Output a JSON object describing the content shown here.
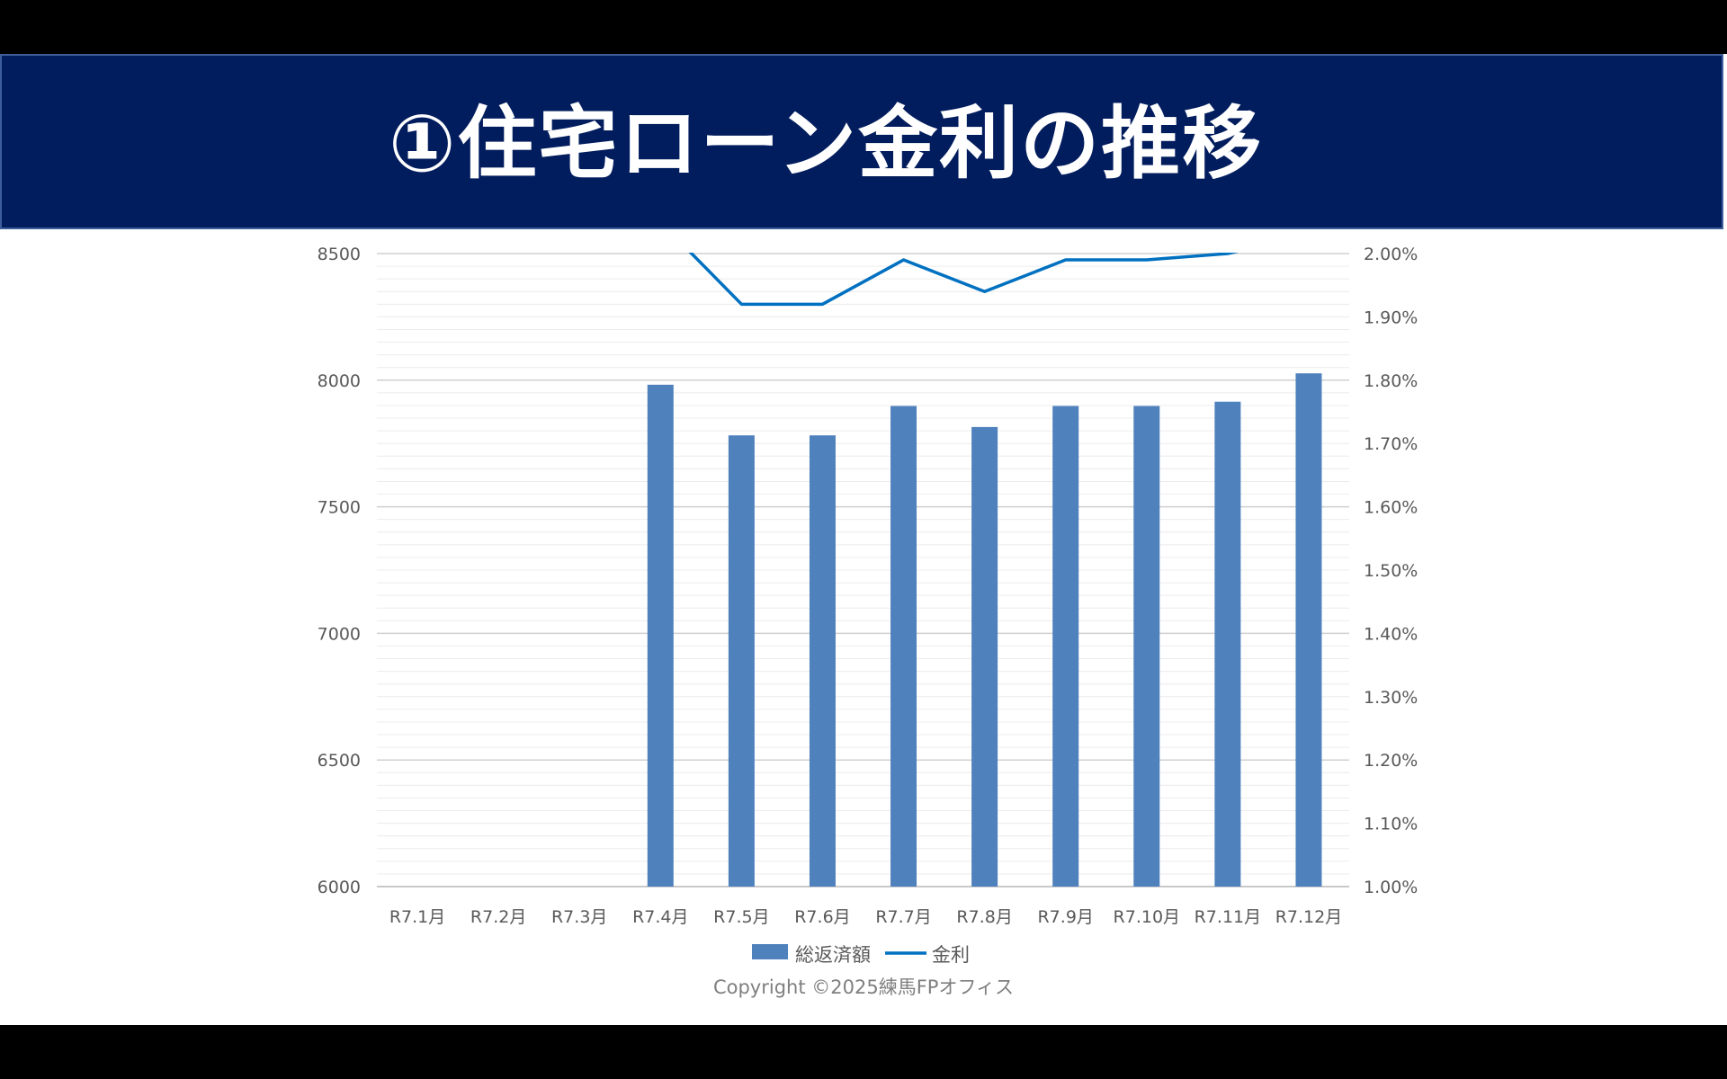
{
  "slide": {
    "title": "①住宅ローン金利の推移",
    "copyright": "Copyright ©2025練馬FPオフィス"
  },
  "chart_data": {
    "type": "bar",
    "categories": [
      "R7.1月",
      "R7.2月",
      "R7.3月",
      "R7.4月",
      "R7.5月",
      "R7.6月",
      "R7.7月",
      "R7.8月",
      "R7.9月",
      "R7.10月",
      "R7.11月",
      "R7.12月"
    ],
    "series": [
      {
        "name": "総返済額",
        "type": "bar",
        "axis": "left",
        "color": "#4f81bd",
        "values": [
          null,
          null,
          null,
          7982,
          7782,
          7782,
          7898,
          7815,
          7898,
          7898,
          7915,
          8027
        ]
      },
      {
        "name": "金利",
        "type": "line",
        "axis": "right",
        "color": "#0070c0",
        "values": [
          null,
          null,
          null,
          2.05,
          1.92,
          1.92,
          1.99,
          1.94,
          1.99,
          1.99,
          2.0,
          2.03
        ]
      }
    ],
    "y_left": {
      "range": [
        6000,
        8500
      ],
      "ticks": [
        "6000",
        "6500",
        "7000",
        "7500",
        "8000",
        "8500"
      ]
    },
    "y_right": {
      "range": [
        1.0,
        2.0
      ],
      "ticks": [
        "1.00%",
        "1.10%",
        "1.20%",
        "1.30%",
        "1.40%",
        "1.50%",
        "1.60%",
        "1.70%",
        "1.80%",
        "1.90%",
        "2.00%"
      ]
    },
    "grid": true,
    "legend": "bottom"
  }
}
